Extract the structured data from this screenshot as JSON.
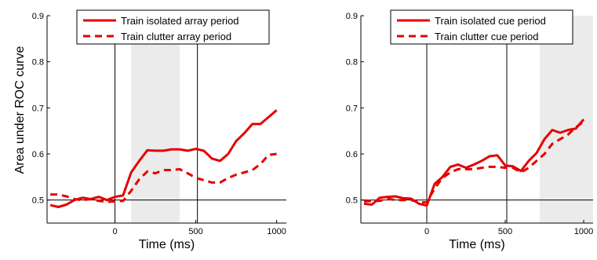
{
  "chart_data": [
    {
      "type": "line",
      "xlabel": "Time (ms)",
      "ylabel": "Area under ROC curve",
      "xlim": [
        -420,
        1060
      ],
      "ylim": [
        0.45,
        0.9
      ],
      "xticks": [
        0,
        500,
        1000
      ],
      "yticks": [
        0.5,
        0.6,
        0.7,
        0.8,
        0.9
      ],
      "hline": 0.5,
      "vlines": [
        0,
        510
      ],
      "shaded_interval": [
        100,
        400
      ],
      "legend_position": "top",
      "series": [
        {
          "name": "Train isolated array period",
          "style": "solid",
          "color": "#e60000",
          "x": [
            -400,
            -350,
            -300,
            -250,
            -200,
            -150,
            -100,
            -50,
            0,
            50,
            100,
            150,
            200,
            250,
            300,
            350,
            400,
            450,
            500,
            550,
            600,
            650,
            700,
            750,
            800,
            850,
            900,
            950,
            1000
          ],
          "y": [
            0.489,
            0.485,
            0.49,
            0.5,
            0.505,
            0.502,
            0.507,
            0.5,
            0.507,
            0.51,
            0.56,
            0.585,
            0.608,
            0.607,
            0.607,
            0.61,
            0.61,
            0.607,
            0.611,
            0.607,
            0.59,
            0.585,
            0.6,
            0.628,
            0.645,
            0.665,
            0.665,
            0.68,
            0.695
          ]
        },
        {
          "name": "Train clutter array period",
          "style": "dashed",
          "color": "#e60000",
          "x": [
            -400,
            -350,
            -300,
            -250,
            -200,
            -150,
            -100,
            -50,
            0,
            50,
            100,
            150,
            200,
            250,
            300,
            350,
            400,
            450,
            500,
            550,
            600,
            650,
            700,
            750,
            800,
            850,
            900,
            950,
            1000
          ],
          "y": [
            0.512,
            0.512,
            0.508,
            0.502,
            0.5,
            0.502,
            0.498,
            0.496,
            0.497,
            0.498,
            0.52,
            0.545,
            0.562,
            0.558,
            0.565,
            0.565,
            0.567,
            0.558,
            0.548,
            0.543,
            0.538,
            0.538,
            0.548,
            0.555,
            0.56,
            0.565,
            0.578,
            0.598,
            0.6
          ]
        }
      ]
    },
    {
      "type": "line",
      "xlabel": "Time (ms)",
      "ylabel": "",
      "xlim": [
        -420,
        1060
      ],
      "ylim": [
        0.45,
        0.9
      ],
      "xticks": [
        0,
        500,
        1000
      ],
      "yticks": [
        0.5,
        0.6,
        0.7,
        0.8,
        0.9
      ],
      "hline": 0.5,
      "vlines": [
        0,
        510
      ],
      "shaded_interval": [
        720,
        1060
      ],
      "legend_position": "top",
      "series": [
        {
          "name": "Train isolated cue period",
          "style": "solid",
          "color": "#e60000",
          "x": [
            -400,
            -350,
            -300,
            -250,
            -200,
            -150,
            -100,
            -50,
            0,
            50,
            100,
            150,
            200,
            250,
            300,
            350,
            400,
            450,
            500,
            550,
            600,
            650,
            700,
            750,
            800,
            850,
            900,
            950,
            1000
          ],
          "y": [
            0.492,
            0.49,
            0.505,
            0.507,
            0.508,
            0.504,
            0.503,
            0.492,
            0.488,
            0.535,
            0.55,
            0.572,
            0.577,
            0.57,
            0.577,
            0.585,
            0.595,
            0.597,
            0.575,
            0.573,
            0.563,
            0.585,
            0.602,
            0.632,
            0.652,
            0.646,
            0.652,
            0.655,
            0.675
          ]
        },
        {
          "name": "Train clutter cue period",
          "style": "dashed",
          "color": "#e60000",
          "x": [
            -400,
            -350,
            -300,
            -250,
            -200,
            -150,
            -100,
            -50,
            0,
            50,
            100,
            150,
            200,
            250,
            300,
            350,
            400,
            450,
            500,
            550,
            600,
            650,
            700,
            750,
            800,
            850,
            900,
            950,
            1000
          ],
          "y": [
            0.497,
            0.498,
            0.498,
            0.503,
            0.5,
            0.5,
            0.5,
            0.495,
            0.495,
            0.525,
            0.548,
            0.56,
            0.567,
            0.567,
            0.567,
            0.57,
            0.572,
            0.572,
            0.57,
            0.57,
            0.56,
            0.57,
            0.585,
            0.6,
            0.622,
            0.632,
            0.642,
            0.658,
            0.67
          ]
        }
      ]
    }
  ]
}
